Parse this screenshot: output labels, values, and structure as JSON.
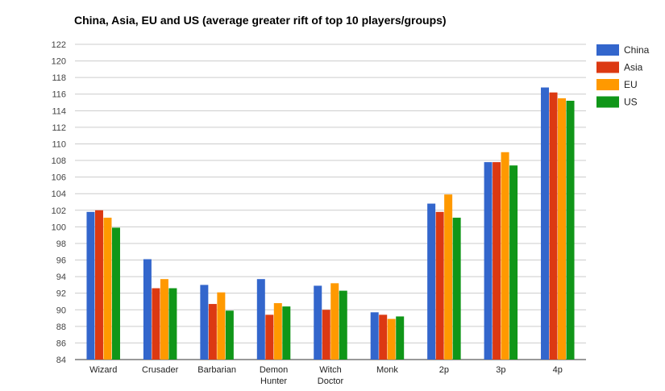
{
  "chart_data": {
    "type": "bar",
    "title": "China, Asia, EU and US (average greater rift of top 10 players/groups)",
    "xlabel": "",
    "ylabel": "",
    "categories": [
      "Wizard",
      "Crusader",
      "Barbarian",
      "Demon Hunter",
      "Witch Doctor",
      "Monk",
      "2p",
      "3p",
      "4p"
    ],
    "category_lines": [
      [
        "Wizard"
      ],
      [
        "Crusader"
      ],
      [
        "Barbarian"
      ],
      [
        "Demon",
        "Hunter"
      ],
      [
        "Witch",
        "Doctor"
      ],
      [
        "Monk"
      ],
      [
        "2p"
      ],
      [
        "3p"
      ],
      [
        "4p"
      ]
    ],
    "ylim": [
      84,
      122
    ],
    "yticks": [
      "84",
      "86",
      "88",
      "90",
      "92",
      "94",
      "96",
      "98",
      "100",
      "102",
      "104",
      "106",
      "108",
      "110",
      "112",
      "114",
      "116",
      "118",
      "120",
      "122"
    ],
    "grid": true,
    "legend_position": "right",
    "series": [
      {
        "name": "China",
        "color": "#3366cc",
        "values": [
          101.8,
          96.1,
          93.0,
          93.7,
          92.9,
          89.7,
          102.8,
          107.8,
          116.8
        ]
      },
      {
        "name": "Asia",
        "color": "#dc3912",
        "values": [
          102.0,
          92.6,
          90.7,
          89.4,
          90.0,
          89.4,
          101.8,
          107.8,
          116.2
        ]
      },
      {
        "name": "EU",
        "color": "#ff9900",
        "values": [
          101.1,
          93.7,
          92.1,
          90.8,
          93.2,
          88.9,
          103.9,
          109.0,
          115.5
        ]
      },
      {
        "name": "US",
        "color": "#109618",
        "values": [
          99.9,
          92.6,
          89.9,
          90.4,
          92.3,
          89.2,
          101.1,
          107.4,
          115.2
        ]
      }
    ]
  }
}
